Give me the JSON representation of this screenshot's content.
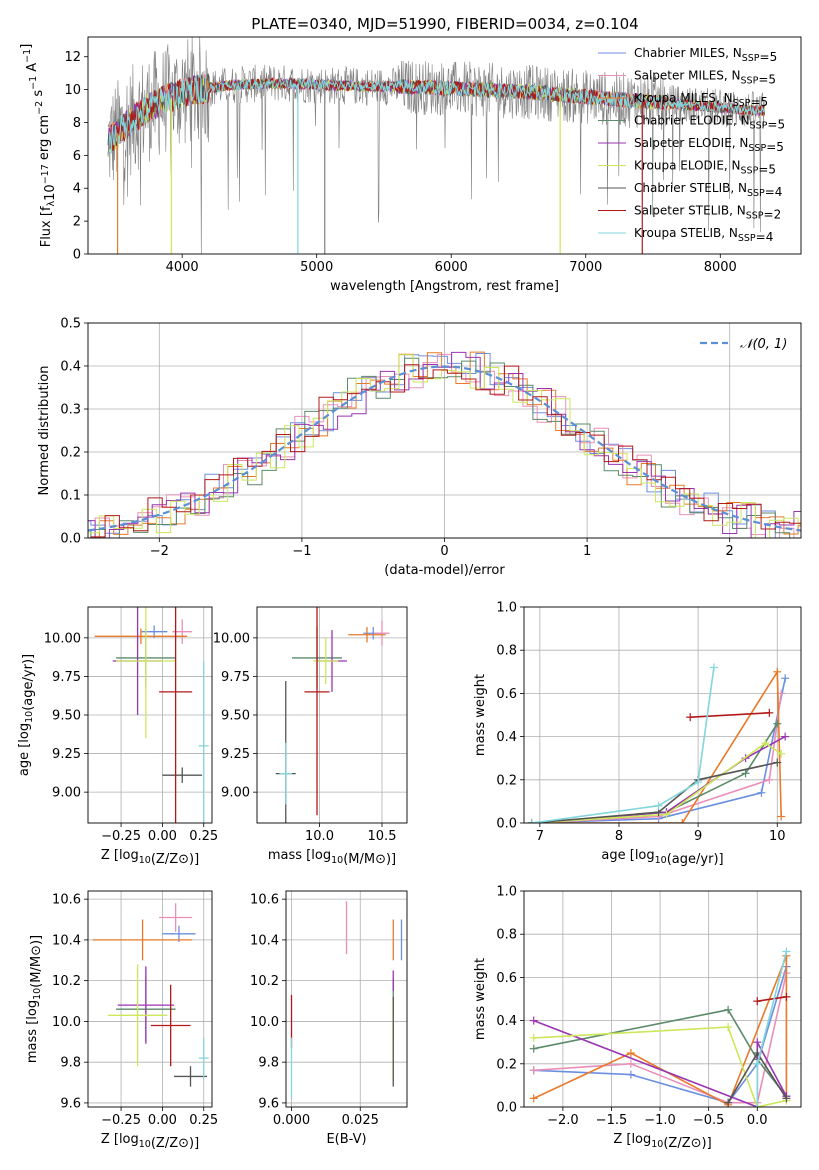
{
  "figure_title": "PLATE=0340, MJD=51990, FIBERID=0034, z=0.104",
  "colors": {
    "chabrier_miles": "#6b8fe0",
    "salpeter_miles": "#ea8fb8",
    "kroupa_miles": "#e87a2a",
    "chabrier_elodie": "#5c8a6a",
    "salpeter_elodie": "#9a35b2",
    "kroupa_elodie": "#cce75a",
    "chabrier_stelib": "#555555",
    "salpeter_stelib": "#b31818",
    "kroupa_stelib": "#82d6dc",
    "data": "#7f7f7f"
  },
  "chart_data": [
    {
      "id": "spectrum",
      "type": "line",
      "xlabel": "wavelength [Angstrom, rest frame]",
      "ylabel": "Flux [f_λ10^-17 erg cm^-2 s^-1 A^-1]",
      "xlim": [
        3300,
        8600
      ],
      "ylim": [
        0,
        13.2
      ],
      "xticks": [
        4000,
        5000,
        6000,
        7000,
        8000
      ],
      "yticks": [
        0,
        2,
        4,
        6,
        8,
        10,
        12
      ],
      "legend_position": "upper right",
      "legend": [
        {
          "key": "chabrier_miles",
          "text": "Chabrier MILES, N_SSP=5"
        },
        {
          "key": "salpeter_miles",
          "text": "Salpeter MILES, N_SSP=5"
        },
        {
          "key": "kroupa_miles",
          "text": "Kroupa MILES, N_SSP=5"
        },
        {
          "key": "chabrier_elodie",
          "text": "Chabrier ELODIE, N_SSP=5"
        },
        {
          "key": "salpeter_elodie",
          "text": "Salpeter ELODIE, N_SSP=5"
        },
        {
          "key": "kroupa_elodie",
          "text": "Kroupa ELODIE, N_SSP=5"
        },
        {
          "key": "chabrier_stelib",
          "text": "Chabrier STELIB, N_SSP=4"
        },
        {
          "key": "salpeter_stelib",
          "text": "Salpeter STELIB, N_SSP=2"
        },
        {
          "key": "kroupa_stelib",
          "text": "Kroupa STELIB, N_SSP=4"
        }
      ],
      "continuum": {
        "x": [
          3450,
          3550,
          3650,
          3750,
          3850,
          3950,
          4050,
          4200,
          4400,
          4700,
          5000,
          5300,
          5600,
          5900,
          6200,
          6500,
          6800,
          7100,
          7400,
          7700,
          8000,
          8300
        ],
        "y": [
          6.8,
          7.6,
          8.3,
          8.9,
          9.3,
          9.6,
          9.9,
          10.1,
          10.3,
          10.4,
          10.3,
          10.2,
          10.2,
          10.1,
          10.0,
          9.9,
          9.7,
          9.5,
          9.3,
          9.1,
          8.9,
          8.7
        ]
      },
      "dropouts": [
        {
          "x": 3520,
          "y": 0,
          "key": "kroupa_miles"
        },
        {
          "x": 3920,
          "y": 0,
          "key": "kroupa_elodie"
        },
        {
          "x": 4860,
          "y": 0,
          "key": "kroupa_stelib"
        },
        {
          "x": 5060,
          "y": 0,
          "key": "data"
        },
        {
          "x": 6810,
          "y": 0,
          "key": "kroupa_elodie"
        },
        {
          "x": 7420,
          "y": 0,
          "key": "salpeter_stelib"
        }
      ]
    },
    {
      "id": "residuals",
      "type": "histogram",
      "xlabel": "(data-model)/error",
      "ylabel": "Normed distribution",
      "xlim": [
        -2.5,
        2.5
      ],
      "ylim": [
        0,
        0.5
      ],
      "xticks": [
        -2,
        -1,
        0,
        1,
        2
      ],
      "yticks": [
        0.0,
        0.1,
        0.2,
        0.3,
        0.4,
        0.5
      ],
      "grid": true,
      "bin_width": 0.1,
      "reference_curve": {
        "label": "𝒩(0, 1)",
        "type": "gaussian",
        "mean": 0,
        "sigma": 1,
        "color": "#5b8fd6"
      },
      "legend_position": "upper right"
    },
    {
      "id": "age_vs_Z",
      "type": "errorbar",
      "xlabel": "Z [log10(Z/Z⊙)]",
      "ylabel": "age  [log10(age/yr)]",
      "xlim": [
        -0.45,
        0.3
      ],
      "ylim": [
        8.8,
        10.2
      ],
      "xticks": [
        -0.25,
        0.0,
        0.25
      ],
      "yticks": [
        9.0,
        9.25,
        9.5,
        9.75,
        10.0
      ],
      "grid": true,
      "points": [
        {
          "key": "chabrier_miles",
          "x": -0.05,
          "y": 10.04,
          "xerr": 0.08,
          "yerr": 0.04
        },
        {
          "key": "salpeter_miles",
          "x": 0.12,
          "y": 10.04,
          "xerr": 0.06,
          "yerr": 0.08
        },
        {
          "key": "kroupa_miles",
          "x": -0.13,
          "y": 10.01,
          "xerr": 0.28,
          "yerr": 0.05
        },
        {
          "key": "chabrier_elodie",
          "x": -0.1,
          "y": 9.87,
          "xerr": 0.18,
          "yerr": 0.19
        },
        {
          "key": "salpeter_elodie",
          "x": -0.15,
          "y": 9.85,
          "xerr": 0.15,
          "yerr": 0.35
        },
        {
          "key": "kroupa_elodie",
          "x": -0.1,
          "y": 9.85,
          "xerr": 0.18,
          "yerr": 0.5
        },
        {
          "key": "chabrier_stelib",
          "x": 0.12,
          "y": 9.11,
          "xerr": 0.12,
          "yerr": 0.05
        },
        {
          "key": "salpeter_stelib",
          "x": 0.08,
          "y": 9.65,
          "xerr": 0.1,
          "yerr": 0.85
        },
        {
          "key": "kroupa_stelib",
          "x": 0.25,
          "y": 9.3,
          "xerr": 0.03,
          "yerr": 0.55
        }
      ]
    },
    {
      "id": "age_vs_mass",
      "type": "errorbar",
      "xlabel": "mass [log10(M/M⊙)]",
      "ylabel": "",
      "xlim": [
        9.5,
        10.7
      ],
      "ylim": [
        8.8,
        10.2
      ],
      "xticks": [
        10.0,
        10.5
      ],
      "yticks": [
        9.0,
        9.25,
        9.5,
        9.75,
        10.0
      ],
      "grid": true,
      "points": [
        {
          "key": "chabrier_miles",
          "x": 10.43,
          "y": 10.03,
          "xerr": 0.08,
          "yerr": 0.04
        },
        {
          "key": "salpeter_miles",
          "x": 10.5,
          "y": 10.03,
          "xerr": 0.06,
          "yerr": 0.08
        },
        {
          "key": "kroupa_miles",
          "x": 10.38,
          "y": 10.02,
          "xerr": 0.15,
          "yerr": 0.05
        },
        {
          "key": "chabrier_elodie",
          "x": 9.98,
          "y": 9.87,
          "xerr": 0.2,
          "yerr": 0.2
        },
        {
          "key": "salpeter_elodie",
          "x": 10.1,
          "y": 9.85,
          "xerr": 0.12,
          "yerr": 0.2
        },
        {
          "key": "kroupa_elodie",
          "x": 10.05,
          "y": 9.85,
          "xerr": 0.1,
          "yerr": 0.15
        },
        {
          "key": "chabrier_stelib",
          "x": 9.73,
          "y": 9.12,
          "xerr": 0.08,
          "yerr": 0.6
        },
        {
          "key": "salpeter_stelib",
          "x": 9.98,
          "y": 9.65,
          "xerr": 0.1,
          "yerr": 0.8
        },
        {
          "key": "kroupa_stelib",
          "x": 9.73,
          "y": 9.12,
          "xerr": 0.05,
          "yerr": 0.2
        }
      ]
    },
    {
      "id": "weight_vs_age",
      "type": "line",
      "xlabel": "age  [log10(age/yr)]",
      "ylabel": "mass weight",
      "xlim": [
        6.8,
        10.3
      ],
      "ylim": [
        0,
        1.0
      ],
      "xticks": [
        7,
        8,
        9,
        10
      ],
      "yticks": [
        0.0,
        0.2,
        0.4,
        0.6,
        0.8,
        1.0
      ],
      "grid": true,
      "series": [
        {
          "key": "chabrier_miles",
          "x": [
            6.9,
            8.5,
            9.8,
            10.1
          ],
          "y": [
            0.0,
            0.02,
            0.14,
            0.67
          ]
        },
        {
          "key": "salpeter_miles",
          "x": [
            6.9,
            8.5,
            9.9,
            10.05
          ],
          "y": [
            0.0,
            0.03,
            0.2,
            0.6
          ]
        },
        {
          "key": "kroupa_miles",
          "x": [
            6.9,
            8.8,
            10.0,
            10.05
          ],
          "y": [
            0.0,
            0.0,
            0.7,
            0.03
          ]
        },
        {
          "key": "chabrier_elodie",
          "x": [
            6.9,
            8.6,
            9.6,
            10.0
          ],
          "y": [
            0.0,
            0.05,
            0.23,
            0.46
          ]
        },
        {
          "key": "salpeter_elodie",
          "x": [
            6.9,
            8.6,
            9.6,
            10.1
          ],
          "y": [
            0.0,
            0.05,
            0.3,
            0.4
          ]
        },
        {
          "key": "kroupa_elodie",
          "x": [
            6.9,
            8.6,
            9.85,
            10.05
          ],
          "y": [
            0.0,
            0.04,
            0.37,
            0.32
          ]
        },
        {
          "key": "chabrier_stelib",
          "x": [
            6.9,
            8.5,
            9.0,
            10.0
          ],
          "y": [
            0.0,
            0.05,
            0.2,
            0.28
          ]
        },
        {
          "key": "salpeter_stelib",
          "x": [
            8.9,
            9.9
          ],
          "y": [
            0.49,
            0.51
          ]
        },
        {
          "key": "kroupa_stelib",
          "x": [
            6.9,
            8.5,
            9.0,
            9.2
          ],
          "y": [
            0.0,
            0.08,
            0.19,
            0.72
          ]
        }
      ]
    },
    {
      "id": "mass_vs_Z",
      "type": "errorbar",
      "xlabel": "Z [log10(Z/Z⊙)]",
      "ylabel": "mass [log10(M/M⊙)]",
      "xlim": [
        -0.45,
        0.3
      ],
      "ylim": [
        9.58,
        10.64
      ],
      "xticks": [
        -0.25,
        0.0,
        0.25
      ],
      "yticks": [
        9.6,
        9.8,
        10.0,
        10.2,
        10.4,
        10.6
      ],
      "grid": true,
      "points": [
        {
          "key": "chabrier_miles",
          "x": 0.1,
          "y": 10.43,
          "xerr": 0.1,
          "yerr": 0.04
        },
        {
          "key": "salpeter_miles",
          "x": 0.08,
          "y": 10.51,
          "xerr": 0.1,
          "yerr": 0.07
        },
        {
          "key": "kroupa_miles",
          "x": -0.12,
          "y": 10.4,
          "xerr": 0.3,
          "yerr": 0.1
        },
        {
          "key": "chabrier_elodie",
          "x": -0.1,
          "y": 10.06,
          "xerr": 0.18,
          "yerr": 0.16
        },
        {
          "key": "salpeter_elodie",
          "x": -0.1,
          "y": 10.08,
          "xerr": 0.17,
          "yerr": 0.19
        },
        {
          "key": "kroupa_elodie",
          "x": -0.15,
          "y": 10.03,
          "xerr": 0.18,
          "yerr": 0.25
        },
        {
          "key": "chabrier_stelib",
          "x": 0.17,
          "y": 9.73,
          "xerr": 0.1,
          "yerr": 0.05
        },
        {
          "key": "salpeter_stelib",
          "x": 0.05,
          "y": 9.98,
          "xerr": 0.12,
          "yerr": 0.2
        },
        {
          "key": "kroupa_stelib",
          "x": 0.25,
          "y": 9.82,
          "xerr": 0.03,
          "yerr": 0.1
        }
      ]
    },
    {
      "id": "mass_vs_ebv",
      "type": "errorbar",
      "xlabel": "E(B-V)",
      "ylabel": "",
      "xlim": [
        -0.002,
        0.042
      ],
      "ylim": [
        9.58,
        10.64
      ],
      "xticks": [
        0.0,
        0.025
      ],
      "yticks": [
        9.6,
        9.8,
        10.0,
        10.2,
        10.4,
        10.6
      ],
      "grid": true,
      "points": [
        {
          "key": "chabrier_miles",
          "x": 0.04,
          "y": 10.4,
          "xerr": 0.0,
          "yerr": 0.1
        },
        {
          "key": "salpeter_miles",
          "x": 0.02,
          "y": 10.46,
          "xerr": 0.0,
          "yerr": 0.13
        },
        {
          "key": "kroupa_miles",
          "x": 0.037,
          "y": 10.4,
          "xerr": 0.0,
          "yerr": 0.1
        },
        {
          "key": "chabrier_elodie",
          "x": 0.037,
          "y": 10.06,
          "xerr": 0.0,
          "yerr": 0.15
        },
        {
          "key": "salpeter_elodie",
          "x": 0.037,
          "y": 10.2,
          "xerr": 0.0,
          "yerr": 0.05
        },
        {
          "key": "kroupa_elodie",
          "x": 0.037,
          "y": 9.9,
          "xerr": 0.0,
          "yerr": 0.2
        },
        {
          "key": "chabrier_stelib",
          "x": 0.037,
          "y": 9.9,
          "xerr": 0.0,
          "yerr": 0.22
        },
        {
          "key": "salpeter_stelib",
          "x": 0.0,
          "y": 10.0,
          "xerr": 0.0,
          "yerr": 0.13
        },
        {
          "key": "kroupa_stelib",
          "x": 0.0,
          "y": 9.77,
          "xerr": 0.0,
          "yerr": 0.15
        }
      ]
    },
    {
      "id": "weight_vs_Z",
      "type": "line",
      "xlabel": "Z [log10(Z/Z⊙)]",
      "ylabel": "mass weight",
      "xlim": [
        -2.4,
        0.45
      ],
      "ylim": [
        0,
        1.0
      ],
      "xticks": [
        -2.0,
        -1.5,
        -1.0,
        -0.5,
        0.0
      ],
      "yticks": [
        0.0,
        0.2,
        0.4,
        0.6,
        0.8,
        1.0
      ],
      "grid": true,
      "series": [
        {
          "key": "chabrier_miles",
          "x": [
            -2.3,
            -1.3,
            -0.3,
            0.0,
            0.3
          ],
          "y": [
            0.17,
            0.15,
            0.02,
            0.2,
            0.65
          ]
        },
        {
          "key": "salpeter_miles",
          "x": [
            -2.3,
            -1.3,
            -0.3,
            0.0,
            0.3
          ],
          "y": [
            0.17,
            0.2,
            0.02,
            0.02,
            0.62
          ]
        },
        {
          "key": "kroupa_miles",
          "x": [
            -2.3,
            -1.3,
            -0.3,
            0.3,
            0.3
          ],
          "y": [
            0.04,
            0.25,
            0.01,
            0.7,
            0.03
          ]
        },
        {
          "key": "chabrier_elodie",
          "x": [
            -2.3,
            -0.3,
            0.0,
            0.3
          ],
          "y": [
            0.27,
            0.45,
            0.22,
            0.05
          ]
        },
        {
          "key": "salpeter_elodie",
          "x": [
            -2.3,
            0.0,
            0.0,
            0.3
          ],
          "y": [
            0.4,
            0.0,
            0.3,
            0.05
          ]
        },
        {
          "key": "kroupa_elodie",
          "x": [
            -2.3,
            -0.3,
            0.0,
            0.3
          ],
          "y": [
            0.32,
            0.37,
            0.0,
            0.03
          ]
        },
        {
          "key": "chabrier_stelib",
          "x": [
            -0.3,
            0.0,
            0.3
          ],
          "y": [
            0.02,
            0.25,
            0.04
          ]
        },
        {
          "key": "salpeter_stelib",
          "x": [
            0.0,
            0.3
          ],
          "y": [
            0.49,
            0.51
          ]
        },
        {
          "key": "kroupa_stelib",
          "x": [
            0.0,
            0.0,
            0.3
          ],
          "y": [
            0.0,
            0.2,
            0.72
          ]
        }
      ]
    }
  ]
}
